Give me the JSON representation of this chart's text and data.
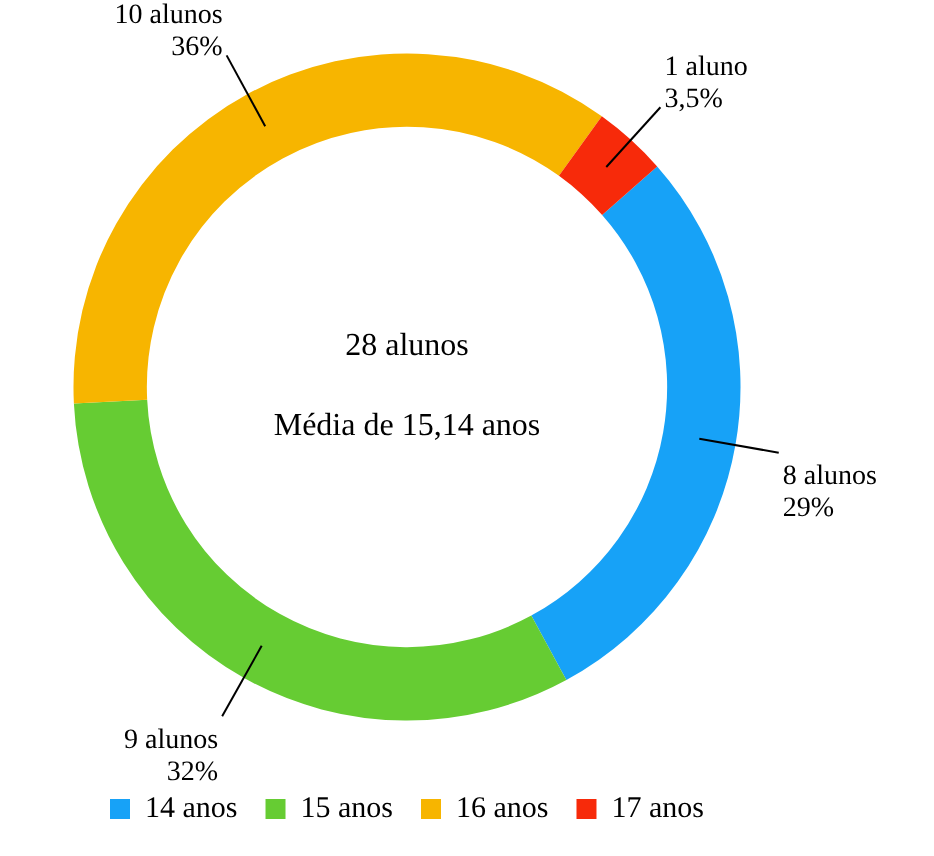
{
  "chart_data": {
    "type": "donut",
    "categories": [
      "14 anos",
      "15 anos",
      "16 anos",
      "17 anos"
    ],
    "values": [
      8,
      9,
      10,
      1
    ],
    "colors": [
      "#17a2f7",
      "#66cc33",
      "#f7b500",
      "#f72a0a"
    ],
    "value_labels": [
      "8 alunos\n29%",
      "9 alunos\n32%",
      "10 alunos\n36%",
      "1 aluno\n3,5%"
    ],
    "annotations": [
      "28 alunos",
      "Média de 15,14 anos"
    ],
    "legend": "bottom"
  }
}
